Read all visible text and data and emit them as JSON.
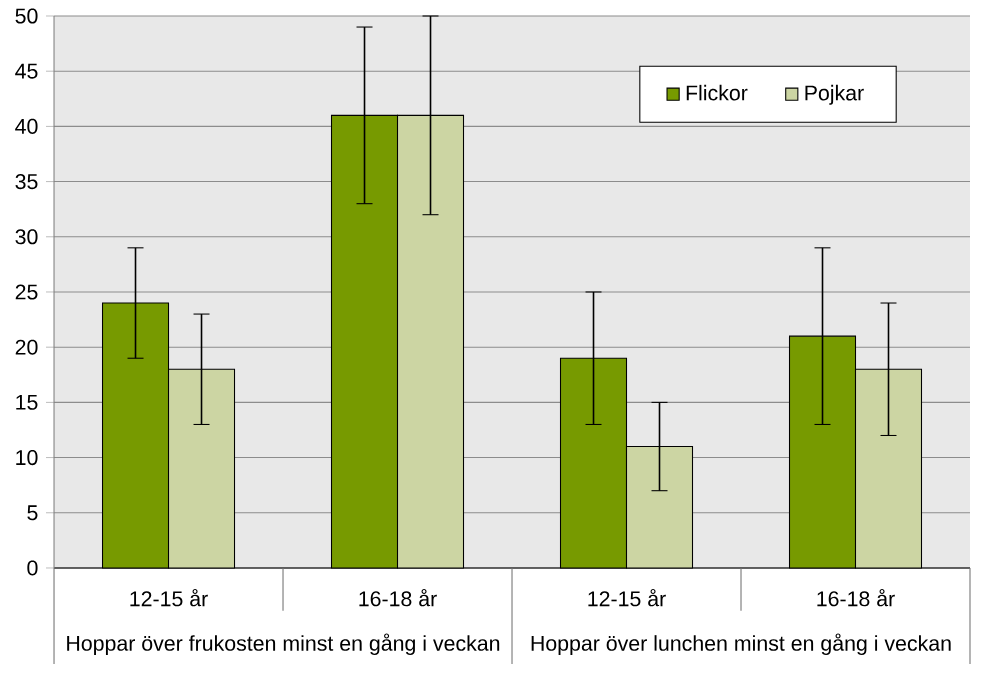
{
  "chart_data": {
    "type": "bar",
    "categories": [
      "12-15 år",
      "16-18 år",
      "12-15 år",
      "16-18 år"
    ],
    "series": [
      {
        "name": "Flickor",
        "color": "#779a00",
        "values": [
          24,
          41,
          19,
          21
        ],
        "errors": [
          5,
          8,
          6,
          8
        ]
      },
      {
        "name": "Pojkar",
        "color": "#ccd5a3",
        "values": [
          18,
          41,
          11,
          18
        ],
        "errors": [
          5,
          9,
          4,
          6
        ]
      }
    ],
    "annotations": [
      "Hoppar över frukosten minst en gång i veckan",
      "Hoppar över lunchen minst en gång i veckan"
    ],
    "ylim": [
      0,
      50
    ],
    "yticks": [
      0,
      5,
      10,
      15,
      20,
      25,
      30,
      35,
      40,
      45,
      50
    ],
    "grid": "y",
    "legend": "top right"
  }
}
